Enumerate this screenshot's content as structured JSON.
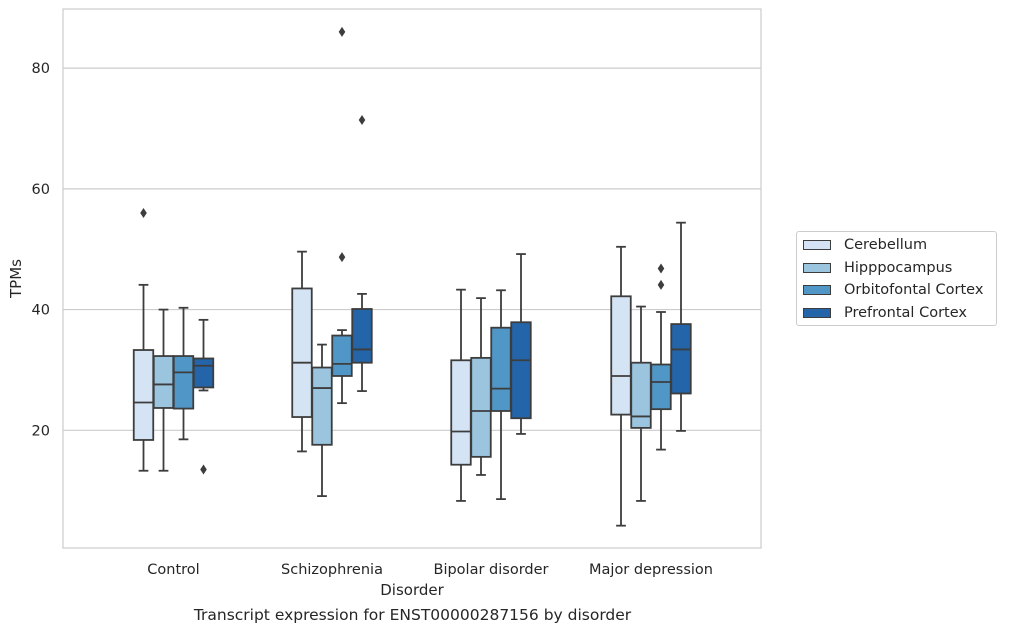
{
  "chart_data": {
    "type": "boxplot",
    "title": "Transcript expression for ENST00000287156 by disorder",
    "xlabel": "Disorder",
    "ylabel": "TPMs",
    "ylim": [
      0,
      90
    ],
    "yticks": [
      20,
      40,
      60,
      80
    ],
    "grid": true,
    "legend_position": "right",
    "categories": [
      "Control",
      "Schizophrenia",
      "Bipolar disorder",
      "Major depression"
    ],
    "series": [
      {
        "name": "Cerebellum",
        "color": "#d4e4f4",
        "boxes": [
          {
            "whislo": 13.3,
            "q1": 18.4,
            "med": 24.6,
            "q3": 33.3,
            "whishi": 44.1,
            "fliers": [
              56.0
            ]
          },
          {
            "whislo": 16.5,
            "q1": 22.2,
            "med": 31.2,
            "q3": 43.5,
            "whishi": 49.6,
            "fliers": []
          },
          {
            "whislo": 8.3,
            "q1": 14.3,
            "med": 19.8,
            "q3": 31.6,
            "whishi": 43.3,
            "fliers": []
          },
          {
            "whislo": 4.2,
            "q1": 22.6,
            "med": 29.0,
            "q3": 42.2,
            "whishi": 50.4,
            "fliers": []
          }
        ]
      },
      {
        "name": "Hipppocampus",
        "color": "#9bc4de",
        "boxes": [
          {
            "whislo": 13.3,
            "q1": 23.7,
            "med": 27.6,
            "q3": 32.3,
            "whishi": 40.0,
            "fliers": []
          },
          {
            "whislo": 9.1,
            "q1": 17.6,
            "med": 27.0,
            "q3": 30.4,
            "whishi": 34.2,
            "fliers": []
          },
          {
            "whislo": 12.6,
            "q1": 15.6,
            "med": 23.2,
            "q3": 32.0,
            "whishi": 41.9,
            "fliers": []
          },
          {
            "whislo": 8.3,
            "q1": 20.4,
            "med": 22.3,
            "q3": 31.2,
            "whishi": 40.5,
            "fliers": []
          }
        ]
      },
      {
        "name": "Orbitofontal Cortex",
        "color": "#5096c7",
        "boxes": [
          {
            "whislo": 18.5,
            "q1": 23.6,
            "med": 29.6,
            "q3": 32.3,
            "whishi": 40.3,
            "fliers": []
          },
          {
            "whislo": 24.5,
            "q1": 29.0,
            "med": 31.0,
            "q3": 35.7,
            "whishi": 36.6,
            "fliers": [
              48.7,
              86.0
            ]
          },
          {
            "whislo": 8.6,
            "q1": 23.2,
            "med": 26.9,
            "q3": 37.0,
            "whishi": 43.2,
            "fliers": []
          },
          {
            "whislo": 16.8,
            "q1": 23.5,
            "med": 28.0,
            "q3": 30.9,
            "whishi": 39.6,
            "fliers": [
              44.1,
              46.8
            ]
          }
        ]
      },
      {
        "name": "Prefrontal Cortex",
        "color": "#2464a8",
        "boxes": [
          {
            "whislo": 26.6,
            "q1": 27.1,
            "med": 30.7,
            "q3": 31.9,
            "whishi": 38.3,
            "fliers": [
              13.5
            ]
          },
          {
            "whislo": 26.5,
            "q1": 31.2,
            "med": 33.4,
            "q3": 40.1,
            "whishi": 42.6,
            "fliers": [
              71.4
            ]
          },
          {
            "whislo": 19.4,
            "q1": 22.0,
            "med": 31.6,
            "q3": 37.9,
            "whishi": 49.2,
            "fliers": []
          },
          {
            "whislo": 19.9,
            "q1": 26.1,
            "med": 33.4,
            "q3": 37.6,
            "whishi": 54.4,
            "fliers": []
          }
        ]
      }
    ]
  }
}
